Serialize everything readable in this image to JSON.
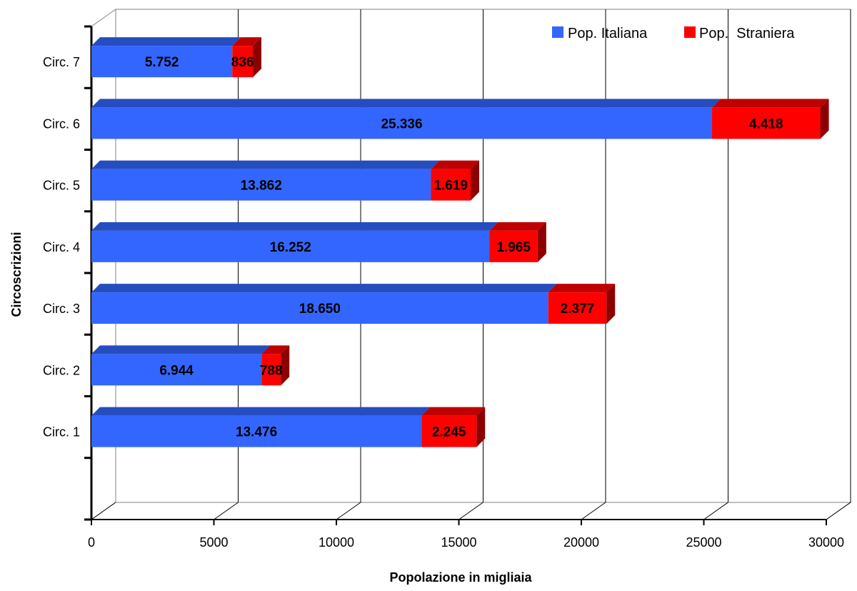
{
  "chart_data": {
    "type": "bar",
    "orientation": "horizontal",
    "stacked": true,
    "three_d": true,
    "categories": [
      "Circ. 1",
      "Circ. 2",
      "Circ. 3",
      "Circ. 4",
      "Circ. 5",
      "Circ. 6",
      "Circ. 7"
    ],
    "series": [
      {
        "name": "Pop. Italiana",
        "color": "#3366FF",
        "values": [
          13476,
          6944,
          18650,
          16252,
          13862,
          25336,
          5752
        ],
        "labels": [
          "13.476",
          "6.944",
          "18.650",
          "16.252",
          "13.862",
          "25.336",
          "5.752"
        ]
      },
      {
        "name": "Pop.  Straniera",
        "color": "#FF0000",
        "values": [
          2245,
          788,
          2377,
          1965,
          1619,
          4418,
          836
        ],
        "labels": [
          "2.245",
          "788",
          "2.377",
          "1.965",
          "1.619",
          "4.418",
          "836"
        ]
      }
    ],
    "xlabel": "Popolazione in migliaia",
    "ylabel": "Circoscrizioni",
    "xlim": [
      0,
      30000
    ],
    "xticks": [
      0,
      5000,
      10000,
      15000,
      20000,
      25000,
      30000
    ],
    "xtick_labels": [
      "0",
      "5000",
      "10000",
      "15000",
      "20000",
      "25000",
      "30000"
    ],
    "grid": true,
    "legend_position": "top-right"
  }
}
